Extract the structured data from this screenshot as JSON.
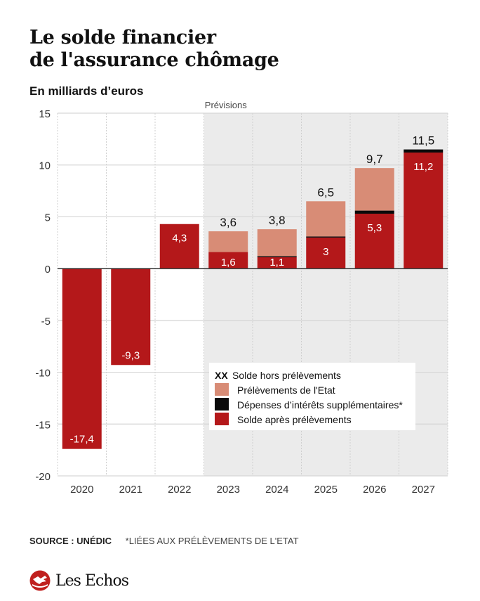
{
  "header": {
    "title_line1": "Le solde financier",
    "title_line2": "de l'assurance chômage",
    "subtitle": "En milliards d’euros"
  },
  "footer": {
    "source": "SOURCE : UNÉDIC",
    "note": "*LIÉES AUX PRÉLÈVEMENTS DE L'ETAT",
    "logo": "Les Echos"
  },
  "colors": {
    "solde_apres": "#b4181a",
    "prelevements": "#d88c76",
    "interets": "#0a0a0a",
    "forecast_bg": "#ebebeb",
    "grid": "#d6d6d6",
    "brand": "#c0201e"
  },
  "chart_data": {
    "type": "bar",
    "stacked": true,
    "title": "Le solde financier de l'assurance chômage",
    "ylabel": "En milliards d’euros",
    "xlabel": "",
    "ylim": [
      -20,
      15
    ],
    "yticks": [
      15,
      10,
      5,
      0,
      -5,
      -10,
      -15,
      -20
    ],
    "grid": true,
    "categories": [
      "2020",
      "2021",
      "2022",
      "2023",
      "2024",
      "2025",
      "2026",
      "2027"
    ],
    "forecast_start_index": 3,
    "forecast_label": "Prévisions",
    "series": [
      {
        "name": "Solde après prélèvements",
        "key": "solde_apres",
        "values": [
          -17.4,
          -9.3,
          4.3,
          1.6,
          1.1,
          3.0,
          5.3,
          11.2
        ]
      },
      {
        "name": "Dépenses d’intérêts supplémentaires*",
        "key": "interets",
        "values": [
          0,
          0,
          0,
          0,
          0.1,
          0.1,
          0.3,
          0.3
        ]
      },
      {
        "name": "Prélèvements de l'Etat",
        "key": "prelevements",
        "values": [
          0,
          0,
          0,
          2.0,
          2.6,
          3.4,
          4.1,
          0
        ]
      }
    ],
    "total_labels": [
      "",
      "",
      "",
      "3,6",
      "3,8",
      "6,5",
      "9,7",
      "11,5"
    ],
    "inner_labels": [
      "-17,4",
      "-9,3",
      "4,3",
      "1,6",
      "1,1",
      "3",
      "5,3",
      "11,2"
    ],
    "legend": {
      "position": "bottom-right",
      "entries": [
        {
          "marker": "XX",
          "label": "Solde hors prélèvements"
        },
        {
          "swatch": "prelevements",
          "label": "Prélèvements de l'Etat"
        },
        {
          "swatch": "interets",
          "label": "Dépenses d’intérêts supplémentaires*"
        },
        {
          "swatch": "solde_apres",
          "label": "Solde après prélèvements"
        }
      ]
    }
  }
}
